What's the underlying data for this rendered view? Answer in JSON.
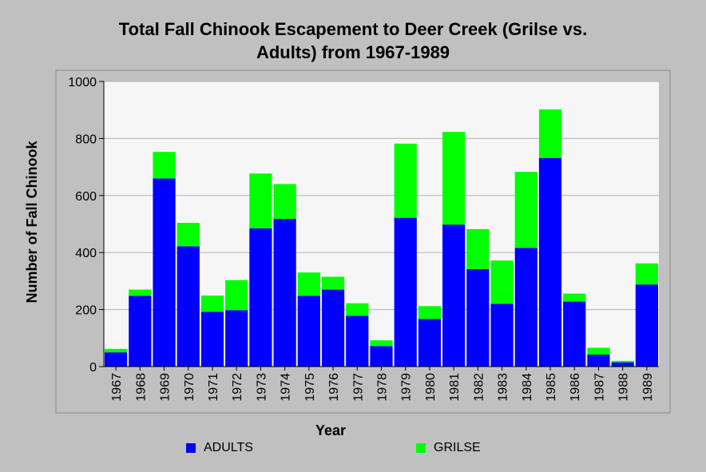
{
  "chart_data": {
    "type": "bar",
    "stacked": true,
    "title_line1": "Total Fall Chinook Escapement to Deer Creek (Grilse vs.",
    "title_line2": "Adults) from 1967-1989",
    "xlabel": "Year",
    "ylabel": "Number of Fall Chinook",
    "ylim": [
      0,
      1000
    ],
    "yticks": [
      0,
      200,
      400,
      600,
      800,
      1000
    ],
    "grid": true,
    "legend_position": "bottom",
    "categories": [
      "1967",
      "1968",
      "1969",
      "1970",
      "1971",
      "1972",
      "1973",
      "1974",
      "1975",
      "1976",
      "1977",
      "1978",
      "1979",
      "1980",
      "1981",
      "1982",
      "1983",
      "1984",
      "1985",
      "1986",
      "1987",
      "1988",
      "1989"
    ],
    "series": [
      {
        "name": "ADULTS",
        "color": "#0000ff",
        "values": [
          50,
          248,
          660,
          422,
          192,
          198,
          485,
          518,
          248,
          270,
          178,
          72,
          522,
          167,
          498,
          342,
          220,
          416,
          732,
          228,
          42,
          15,
          288
        ]
      },
      {
        "name": "GRILSE",
        "color": "#00ff00",
        "values": [
          12,
          22,
          93,
          82,
          57,
          105,
          192,
          122,
          82,
          45,
          44,
          20,
          260,
          45,
          325,
          140,
          152,
          267,
          170,
          28,
          24,
          5,
          74
        ]
      }
    ]
  }
}
